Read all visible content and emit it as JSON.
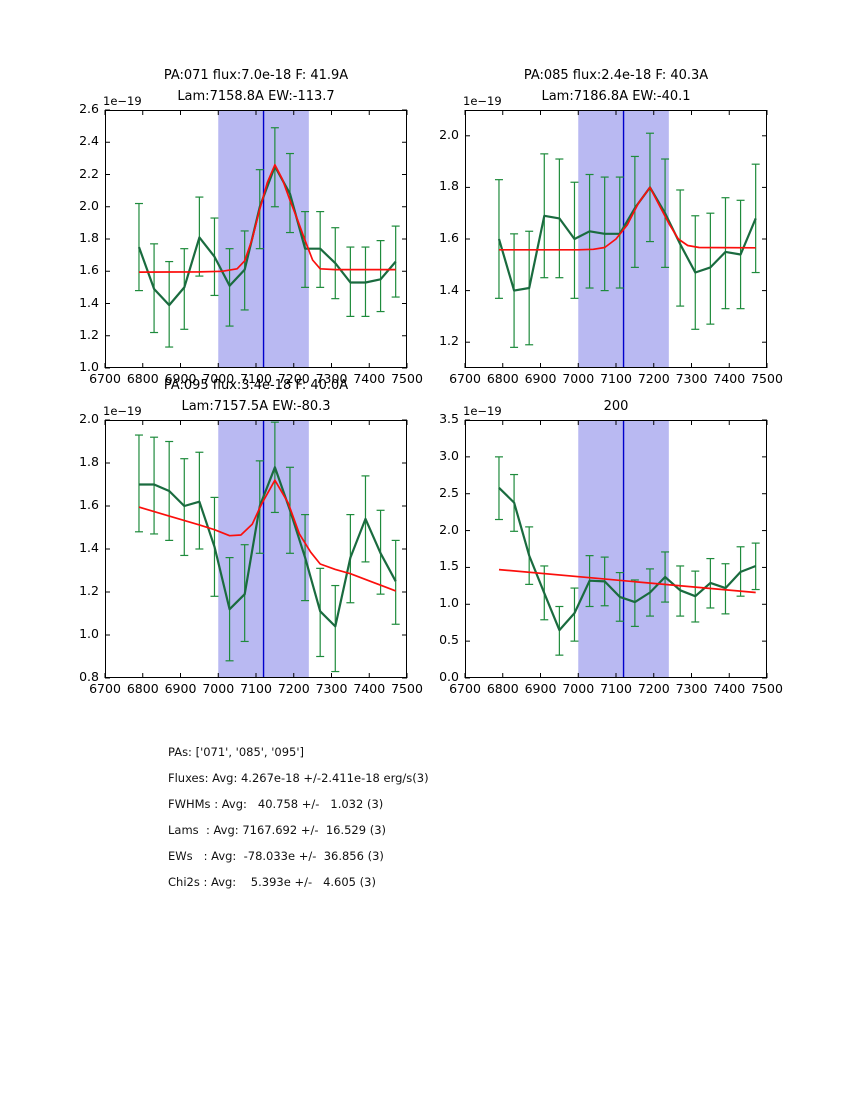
{
  "colors": {
    "background": "#ffffff",
    "axis": "#000000",
    "data_line": "#1a6b3f",
    "error_bar": "#1e8b3c",
    "fit_line": "#fb0f0c",
    "center_line": "#0000cc",
    "band_fill": "#b9b9f2"
  },
  "chart_data": [
    {
      "type": "line",
      "title_line1": "PA:071 flux:7.0e-18 F: 41.9A",
      "title_line2": "Lam:7158.8A EW:-113.7",
      "offset_text": "1e−19",
      "xlim": [
        6700,
        7500
      ],
      "ylim": [
        1.0,
        2.6
      ],
      "xticks": [
        6700,
        6800,
        6900,
        7000,
        7100,
        7200,
        7300,
        7400,
        7500
      ],
      "xtick_labels": [
        "6700",
        "6800",
        "6900",
        "7000",
        "7100",
        "7200",
        "7300",
        "7400",
        "7500"
      ],
      "yticks": [
        1.0,
        1.2,
        1.4,
        1.6,
        1.8,
        2.0,
        2.2,
        2.4,
        2.6
      ],
      "ytick_labels": [
        "1.0",
        "1.2",
        "1.4",
        "1.6",
        "1.8",
        "2.0",
        "2.2",
        "2.4",
        "2.6"
      ],
      "band": [
        7000,
        7240
      ],
      "vline": 7120,
      "series": {
        "x": [
          6790,
          6830,
          6870,
          6910,
          6950,
          6990,
          7030,
          7070,
          7110,
          7150,
          7190,
          7230,
          7270,
          7310,
          7350,
          7390,
          7430,
          7470
        ],
        "flux": [
          1.75,
          1.49,
          1.39,
          1.5,
          1.81,
          1.69,
          1.51,
          1.61,
          2.0,
          2.25,
          2.08,
          1.74,
          1.74,
          1.65,
          1.53,
          1.53,
          1.55,
          1.66
        ],
        "err_lo": [
          1.48,
          1.22,
          1.13,
          1.24,
          1.57,
          1.45,
          1.26,
          1.36,
          1.74,
          2.0,
          1.84,
          1.5,
          1.5,
          1.43,
          1.32,
          1.32,
          1.35,
          1.44
        ],
        "err_hi": [
          2.02,
          1.77,
          1.66,
          1.74,
          2.06,
          1.93,
          1.74,
          1.85,
          2.23,
          2.49,
          2.33,
          1.97,
          1.97,
          1.87,
          1.75,
          1.75,
          1.79,
          1.88
        ]
      },
      "fit": {
        "x": [
          6790,
          6950,
          7010,
          7050,
          7070,
          7090,
          7110,
          7130,
          7150,
          7170,
          7190,
          7210,
          7230,
          7250,
          7270,
          7310,
          7470
        ],
        "y": [
          1.595,
          1.596,
          1.6,
          1.615,
          1.665,
          1.8,
          1.985,
          2.15,
          2.26,
          2.17,
          2.04,
          1.92,
          1.79,
          1.67,
          1.615,
          1.61,
          1.61
        ]
      }
    },
    {
      "type": "line",
      "title_line1": "PA:085 flux:2.4e-18 F: 40.3A",
      "title_line2": "Lam:7186.8A EW:-40.1",
      "offset_text": "1e−19",
      "xlim": [
        6700,
        7500
      ],
      "ylim": [
        1.1,
        2.1
      ],
      "xticks": [
        6700,
        6800,
        6900,
        7000,
        7100,
        7200,
        7300,
        7400,
        7500
      ],
      "xtick_labels": [
        "6700",
        "6800",
        "6900",
        "7000",
        "7100",
        "7200",
        "7300",
        "7400",
        "7500"
      ],
      "yticks": [
        1.2,
        1.4,
        1.6,
        1.8,
        2.0
      ],
      "ytick_labels": [
        "1.2",
        "1.4",
        "1.6",
        "1.8",
        "2.0"
      ],
      "band": [
        7000,
        7240
      ],
      "vline": 7120,
      "series": {
        "x": [
          6790,
          6830,
          6870,
          6910,
          6950,
          6990,
          7030,
          7070,
          7110,
          7150,
          7190,
          7230,
          7270,
          7310,
          7350,
          7390,
          7430,
          7470
        ],
        "flux": [
          1.6,
          1.4,
          1.41,
          1.69,
          1.68,
          1.6,
          1.63,
          1.62,
          1.62,
          1.72,
          1.8,
          1.7,
          1.58,
          1.47,
          1.49,
          1.55,
          1.54,
          1.68
        ],
        "err_lo": [
          1.37,
          1.18,
          1.19,
          1.45,
          1.45,
          1.37,
          1.41,
          1.4,
          1.41,
          1.49,
          1.59,
          1.49,
          1.34,
          1.25,
          1.27,
          1.33,
          1.33,
          1.47
        ],
        "err_hi": [
          1.83,
          1.62,
          1.63,
          1.93,
          1.91,
          1.82,
          1.85,
          1.84,
          1.84,
          1.92,
          2.01,
          1.91,
          1.79,
          1.69,
          1.7,
          1.76,
          1.75,
          1.89
        ]
      },
      "fit": {
        "x": [
          6790,
          7000,
          7040,
          7070,
          7100,
          7130,
          7160,
          7190,
          7215,
          7240,
          7265,
          7290,
          7320,
          7470
        ],
        "y": [
          1.558,
          1.558,
          1.56,
          1.567,
          1.6,
          1.655,
          1.74,
          1.8,
          1.73,
          1.66,
          1.6,
          1.575,
          1.567,
          1.566
        ]
      }
    },
    {
      "type": "line",
      "title_line1": "PA:095 flux:3.4e-18 F: 40.0A",
      "title_line2": "Lam:7157.5A EW:-80.3",
      "offset_text": "1e−19",
      "xlim": [
        6700,
        7500
      ],
      "ylim": [
        0.8,
        2.0
      ],
      "xticks": [
        6700,
        6800,
        6900,
        7000,
        7100,
        7200,
        7300,
        7400,
        7500
      ],
      "xtick_labels": [
        "6700",
        "6800",
        "6900",
        "7000",
        "7100",
        "7200",
        "7300",
        "7400",
        "7500"
      ],
      "yticks": [
        0.8,
        1.0,
        1.2,
        1.4,
        1.6,
        1.8,
        2.0
      ],
      "ytick_labels": [
        "0.8",
        "1.0",
        "1.2",
        "1.4",
        "1.6",
        "1.8",
        "2.0"
      ],
      "band": [
        7000,
        7240
      ],
      "vline": 7120,
      "series": {
        "x": [
          6790,
          6830,
          6870,
          6910,
          6950,
          6990,
          7030,
          7070,
          7110,
          7150,
          7190,
          7230,
          7270,
          7310,
          7350,
          7390,
          7430,
          7470
        ],
        "flux": [
          1.7,
          1.7,
          1.67,
          1.6,
          1.62,
          1.41,
          1.12,
          1.19,
          1.6,
          1.78,
          1.58,
          1.36,
          1.11,
          1.04,
          1.36,
          1.54,
          1.38,
          1.25
        ],
        "err_lo": [
          1.48,
          1.47,
          1.44,
          1.37,
          1.4,
          1.18,
          0.88,
          0.97,
          1.38,
          1.57,
          1.38,
          1.16,
          0.9,
          0.83,
          1.15,
          1.34,
          1.19,
          1.05
        ],
        "err_hi": [
          1.93,
          1.92,
          1.9,
          1.82,
          1.85,
          1.64,
          1.36,
          1.42,
          1.81,
          1.99,
          1.78,
          1.56,
          1.31,
          1.23,
          1.56,
          1.74,
          1.58,
          1.44
        ]
      },
      "fit": {
        "x": [
          6790,
          6870,
          6950,
          6990,
          7030,
          7060,
          7090,
          7115,
          7150,
          7185,
          7215,
          7245,
          7270,
          7310,
          7350,
          7410,
          7470
        ],
        "y": [
          1.595,
          1.553,
          1.512,
          1.49,
          1.462,
          1.465,
          1.515,
          1.61,
          1.72,
          1.615,
          1.47,
          1.385,
          1.33,
          1.305,
          1.285,
          1.245,
          1.205
        ]
      }
    },
    {
      "type": "line",
      "title_line1": "200",
      "title_line2": "",
      "offset_text": "1e−19",
      "xlim": [
        6700,
        7500
      ],
      "ylim": [
        0.0,
        3.5
      ],
      "xticks": [
        6700,
        6800,
        6900,
        7000,
        7100,
        7200,
        7300,
        7400,
        7500
      ],
      "xtick_labels": [
        "6700",
        "6800",
        "6900",
        "7000",
        "7100",
        "7200",
        "7300",
        "7400",
        "7500"
      ],
      "yticks": [
        0.0,
        0.5,
        1.0,
        1.5,
        2.0,
        2.5,
        3.0,
        3.5
      ],
      "ytick_labels": [
        "0.0",
        "0.5",
        "1.0",
        "1.5",
        "2.0",
        "2.5",
        "3.0",
        "3.5"
      ],
      "band": [
        7000,
        7240
      ],
      "vline": 7120,
      "series": {
        "x": [
          6790,
          6830,
          6870,
          6910,
          6950,
          6990,
          7030,
          7070,
          7110,
          7150,
          7190,
          7230,
          7270,
          7310,
          7350,
          7390,
          7430,
          7470
        ],
        "flux": [
          2.58,
          2.38,
          1.66,
          1.15,
          0.65,
          0.88,
          1.32,
          1.31,
          1.1,
          1.03,
          1.16,
          1.37,
          1.19,
          1.11,
          1.29,
          1.22,
          1.44,
          1.52
        ],
        "err_lo": [
          2.15,
          1.99,
          1.27,
          0.79,
          0.31,
          0.5,
          0.97,
          0.98,
          0.77,
          0.7,
          0.84,
          1.03,
          0.84,
          0.76,
          0.95,
          0.87,
          1.11,
          1.2
        ],
        "err_hi": [
          3.0,
          2.76,
          2.05,
          1.52,
          0.97,
          1.22,
          1.66,
          1.64,
          1.43,
          1.33,
          1.48,
          1.71,
          1.52,
          1.45,
          1.62,
          1.55,
          1.78,
          1.83
        ]
      },
      "fit": {
        "x": [
          6790,
          7470
        ],
        "y": [
          1.47,
          1.16
        ]
      }
    }
  ],
  "annotations": {
    "lines": [
      "PAs: ['071', '085', '095']",
      "Fluxes: Avg: 4.267e-18 +/-2.411e-18 erg/s(3)",
      "FWHMs : Avg:   40.758 +/-   1.032 (3)",
      "Lams  : Avg: 7167.692 +/-  16.529 (3)",
      "EWs   : Avg:  -78.033e +/-  36.856 (3)",
      "Chi2s : Avg:    5.393e +/-   4.605 (3)"
    ]
  }
}
